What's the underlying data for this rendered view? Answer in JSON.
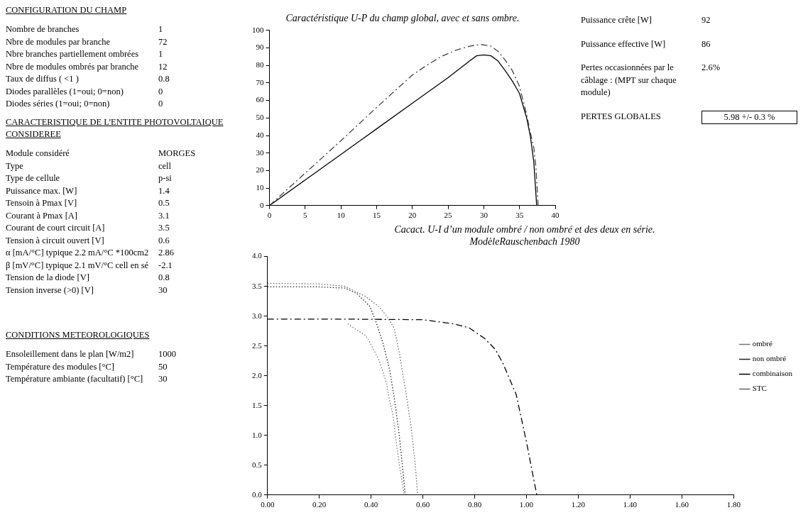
{
  "chart_data": [
    {
      "type": "other",
      "title": "CONFIGURATION DU CHAMP",
      "annotations": [
        "Nombre de branches",
        "1",
        "Nbre de modules par branche",
        "72",
        "Nbre branches partiellement ombrées",
        "1",
        "Nbre de modules ombrés par branche",
        "12",
        "Taux de diffus ( <1 )",
        "0.8",
        "Diodes parallèles (1=oui; 0=non)",
        "0",
        "Diodes séries (1=oui; 0=non)",
        "0"
      ]
    },
    {
      "type": "other",
      "title": "CARACTERISTIQUE DE L'ENTITE PHOTOVOLTAIQUE CONSIDEREE",
      "annotations": [
        "Module considéré",
        "MORGES",
        "Type",
        "cell",
        "Type de cellule",
        "p-si",
        "Puissance max. [W]",
        "1.4",
        "Tensoin à Pmax [V]",
        "0.5",
        "Courant à Pmax [A]",
        "3.1",
        "Courant de court circuit [A]",
        "3.5",
        "Tension à circuit ouvert [V]",
        "0.6",
        "α [mA/°C] typique 2.2 mA/°C *100cm2",
        "2.86",
        "β [mV/°C] typique 2.1 mV/°C cell en sé",
        "-2.1",
        "Tension de la diode [V]",
        "0.8",
        "Tension inverse (>0) [V]",
        "30"
      ]
    },
    {
      "type": "other",
      "title": "CONDITIONS METEOROLOGIQUES",
      "annotations": [
        "Ensoleillement dans le plan [W/m2]",
        "1000",
        "Température des modules [°C]",
        "50",
        "Température ambiante (facultatif) [°C]",
        "30"
      ]
    },
    {
      "type": "line",
      "title": "Caractéristique U-P du champ global, avec et sans ombre.",
      "xlim": [
        0,
        40
      ],
      "xticks": [
        0,
        5,
        10,
        15,
        20,
        25,
        30,
        35,
        40
      ],
      "ylim": [
        0,
        100
      ],
      "yticks": [
        0,
        10,
        20,
        30,
        40,
        50,
        60,
        70,
        80,
        90,
        100
      ],
      "marker": "none",
      "series": [
        {
          "color": "#444444",
          "line_style": "dashed",
          "x": [
            0,
            5,
            10,
            15,
            20,
            22,
            24,
            26,
            28,
            29.5,
            31,
            32,
            33,
            34,
            35,
            36,
            36.5,
            37,
            37.3,
            37.6
          ],
          "values": [
            0,
            18.5,
            37,
            56,
            74.5,
            80,
            85,
            88.5,
            91,
            92,
            91,
            88,
            83,
            77,
            68,
            52,
            42,
            33,
            22,
            0
          ]
        },
        {
          "color": "#000000",
          "line_style": "solid",
          "x": [
            0,
            5,
            10,
            15,
            20,
            25,
            28,
            29,
            30,
            31,
            32,
            33,
            34,
            35,
            36,
            36.5,
            37,
            37.4
          ],
          "values": [
            0,
            14.6,
            29.2,
            43.8,
            58.4,
            73,
            82.5,
            85.5,
            86,
            85.5,
            82.5,
            77,
            71,
            64,
            50,
            40,
            25,
            0
          ]
        }
      ]
    },
    {
      "type": "other",
      "annotations": [
        "Puissance crête [W]",
        "92",
        "Puissance effective [W]",
        "86",
        "Pertes occasionnées par le câblage : (MPT sur chaque module)",
        "2.6%",
        "PERTES GLOBALES",
        "5.98 +/- 0.3 %"
      ]
    },
    {
      "type": "line",
      "title": "Cacact. U-I d’un module ombré / non ombré et des deux en série.",
      "subtitle": "ModèleRauschenbach 1980",
      "xlim": [
        0,
        1.8
      ],
      "xticks": [
        {
          "value": 0,
          "label": "0.00"
        },
        {
          "value": 0.2,
          "label": "0.20"
        },
        {
          "value": 0.4,
          "label": "0.40"
        },
        {
          "value": 0.6,
          "label": "0.60"
        },
        {
          "value": 0.8,
          "label": "0.80"
        },
        {
          "value": 1,
          "label": "1.00"
        },
        {
          "value": 1.2,
          "label": "1.20"
        },
        {
          "value": 1.4,
          "label": "1.40"
        },
        {
          "value": 1.6,
          "label": "1.60"
        },
        {
          "value": 1.8,
          "label": "1.80"
        }
      ],
      "ylim": [
        0,
        4
      ],
      "yticks": [
        {
          "value": 0,
          "label": "0.0"
        },
        {
          "value": 0.5,
          "label": "0.5"
        },
        {
          "value": 1,
          "label": "1.0"
        },
        {
          "value": 1.5,
          "label": "1.5"
        },
        {
          "value": 2,
          "label": "2.0"
        },
        {
          "value": 2.5,
          "label": "2.5"
        },
        {
          "value": 3,
          "label": "3.0"
        },
        {
          "value": 3.5,
          "label": "3.5"
        },
        {
          "value": 4,
          "label": "4.0"
        }
      ],
      "marker": "none",
      "legend": "right",
      "series": [
        {
          "name": "ombré",
          "color": "#777777",
          "line_style": "dotted",
          "x": [
            0.31,
            0.38,
            0.39,
            0.43,
            0.46,
            0.47,
            0.485,
            0.494,
            0.51,
            0.52,
            0.528
          ],
          "values": [
            2.87,
            2.67,
            2.6,
            2.27,
            1.87,
            1.62,
            1.33,
            0.98,
            0.49,
            0.22,
            0
          ]
        },
        {
          "name": "non ombré",
          "color": "#222222",
          "line_style": "dotted",
          "x": [
            0,
            0.2,
            0.3,
            0.345,
            0.396,
            0.42,
            0.447,
            0.472,
            0.489,
            0.506,
            0.519,
            0.532
          ],
          "values": [
            3.49,
            3.49,
            3.47,
            3.38,
            3.16,
            2.89,
            2.53,
            2.09,
            1.64,
            1.11,
            0.58,
            0
          ]
        },
        {
          "name": "combinaison",
          "color": "#000000",
          "line_style": "dashed",
          "x": [
            0,
            0.3,
            0.6,
            0.685,
            0.72,
            0.78,
            0.84,
            0.88,
            0.91,
            0.96,
            0.98,
            1,
            1.02,
            1.04
          ],
          "values": [
            2.95,
            2.95,
            2.94,
            2.89,
            2.87,
            2.8,
            2.62,
            2.44,
            2.2,
            1.69,
            1.29,
            0.89,
            0.44,
            0
          ]
        },
        {
          "name": "STC",
          "color": "#666666",
          "line_style": "dotted",
          "x": [
            0,
            0.2,
            0.3,
            0.379,
            0.43,
            0.464,
            0.489,
            0.51,
            0.532,
            0.553,
            0.57,
            0.58
          ],
          "values": [
            3.55,
            3.54,
            3.5,
            3.33,
            3.16,
            2.98,
            2.8,
            2.36,
            1.78,
            1.2,
            0.53,
            0
          ]
        }
      ]
    }
  ]
}
